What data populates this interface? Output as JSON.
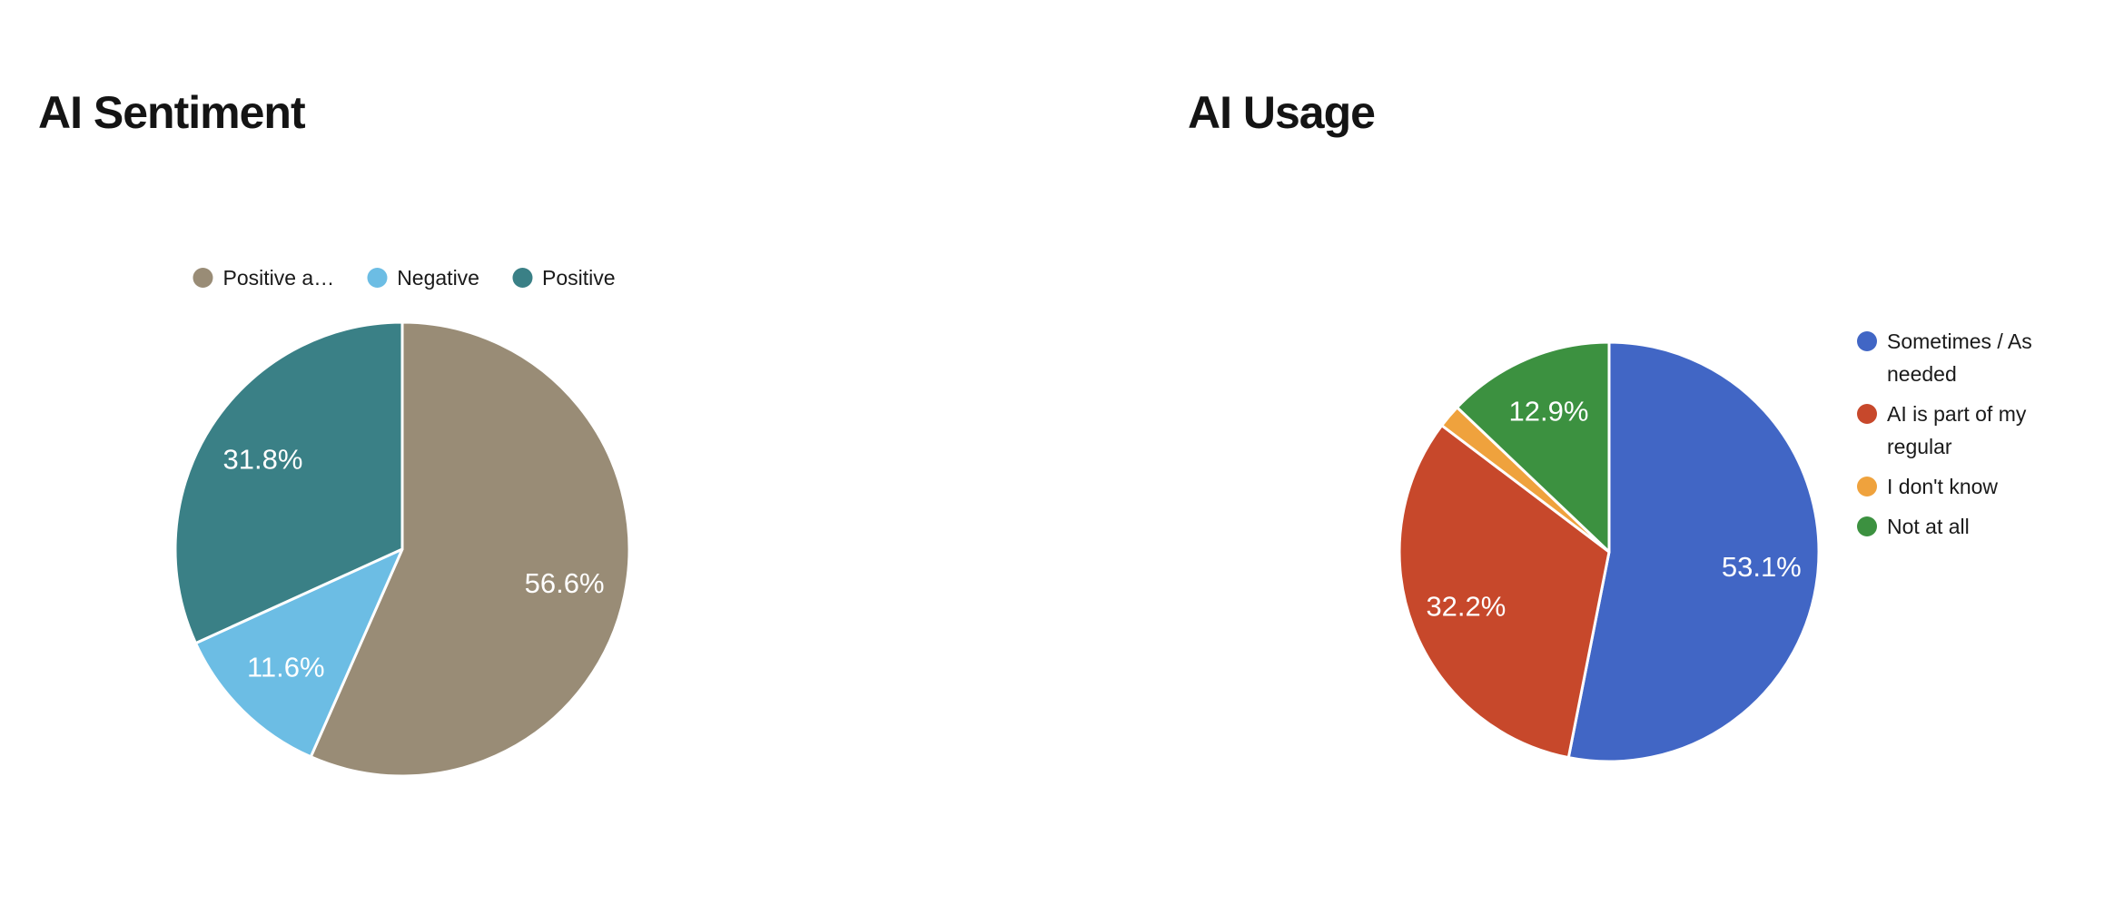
{
  "page": {
    "background_color": "#ffffff",
    "title_color": "#141414",
    "legend_text_color": "#1a1a1a",
    "slice_label_color": "#ffffff"
  },
  "chart_data": [
    {
      "type": "pie",
      "title": "AI Sentiment",
      "legend_position": "top",
      "direction": "clockwise",
      "start_angle_deg": 0,
      "slices": [
        {
          "label": "Positive a…",
          "value": 56.6,
          "pct_label": "56.6%",
          "color": "#998C76"
        },
        {
          "label": "Negative",
          "value": 11.6,
          "pct_label": "11.6%",
          "color": "#6CBDE4"
        },
        {
          "label": "Positive",
          "value": 31.8,
          "pct_label": "31.8%",
          "color": "#3A8086"
        }
      ]
    },
    {
      "type": "pie",
      "title": "AI Usage",
      "legend_position": "right",
      "direction": "clockwise",
      "start_angle_deg": 0,
      "slices": [
        {
          "label": "Sometimes / As needed",
          "value": 53.1,
          "pct_label": "53.1%",
          "color": "#4166C5"
        },
        {
          "label": "AI is part of my regular",
          "value": 32.2,
          "pct_label": "32.2%",
          "color": "#C7482B"
        },
        {
          "label": "I don't know",
          "value": 1.8,
          "pct_label": "",
          "color": "#EFA23D"
        },
        {
          "label": "Not at all",
          "value": 12.9,
          "pct_label": "12.9%",
          "color": "#3C9140"
        }
      ]
    }
  ]
}
